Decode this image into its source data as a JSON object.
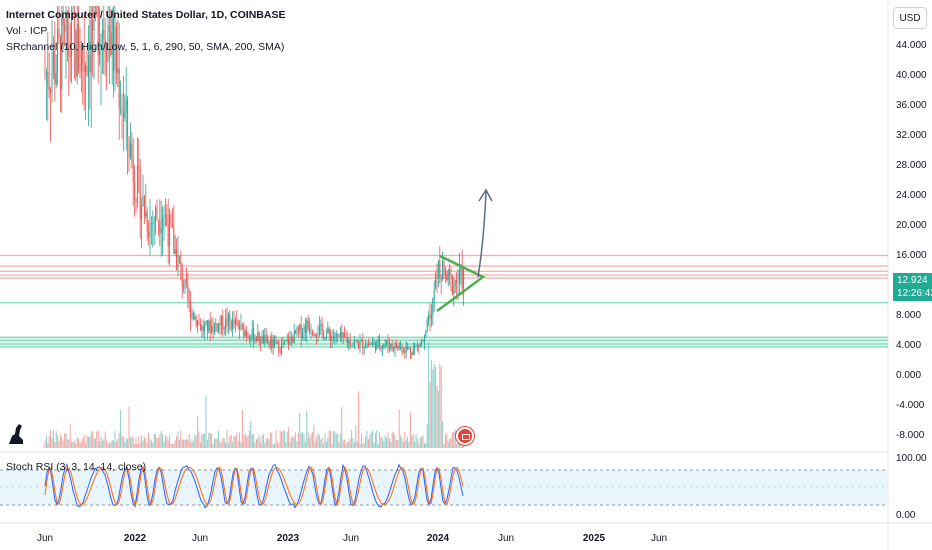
{
  "legend": {
    "title": "Internet Computer / United States Dollar, 1D, COINBASE",
    "volume": "Vol · ICP",
    "sr_channel": "SRchannel (10, High/Low, 5, 1, 6, 290, 50, SMA, 200, SMA)",
    "stoch": "Stoch RSI (3, 3, 14, 14, close)"
  },
  "currency": "USD",
  "last_price": "12.924",
  "countdown": "12:26:42",
  "colors": {
    "up": "#26a69a",
    "down": "#ef5350",
    "sr_red": "#f7a9a7",
    "sr_green": "#7ed9b8",
    "pattern": "#4caf50",
    "arrow": "#5b6b8c",
    "stoch_k": "#2962ff",
    "stoch_d": "#ff6d00",
    "stoch_band": "#e3f2fd"
  },
  "chart_data": {
    "type": "line",
    "title": "Internet Computer / United States Dollar, 1D, COINBASE",
    "x_ticks": [
      "Jun",
      "2022",
      "Jun",
      "2023",
      "Jun",
      "2024",
      "Jun",
      "2025",
      "Jun"
    ],
    "y_ticks": [
      "44.000",
      "40.000",
      "36.000",
      "32.000",
      "28.000",
      "24.000",
      "20.000",
      "16.000",
      "8.000",
      "4.000",
      "0.000",
      "-4.000",
      "-8.000"
    ],
    "stoch_ticks": [
      "100.00",
      "0.00"
    ],
    "ylim": [
      -8,
      46
    ],
    "series": [
      {
        "name": "ICP",
        "x": [
          "2021-06",
          "2021-08",
          "2021-09",
          "2021-10",
          "2021-11",
          "2021-12",
          "2022-01",
          "2022-02",
          "2022-03",
          "2022-04",
          "2022-05",
          "2022-06",
          "2022-08",
          "2022-10",
          "2022-12",
          "2023-02",
          "2023-04",
          "2023-06",
          "2023-08",
          "2023-10",
          "2023-11",
          "2023-12",
          "2024-01",
          "2024-02"
        ],
        "values": [
          40,
          44,
          42,
          48,
          46,
          35,
          25,
          20,
          22,
          16,
          9,
          6,
          7,
          5,
          3.5,
          6.5,
          5,
          4,
          4,
          3.2,
          4.5,
          14,
          12,
          13
        ]
      }
    ],
    "sr_levels": [
      15.8,
      14.4,
      13.7,
      13.2,
      12.8,
      9.5,
      4.9,
      4.5,
      4.0,
      3.6
    ],
    "annotations": [
      "symmetrical triangle",
      "breakout arrow"
    ]
  }
}
